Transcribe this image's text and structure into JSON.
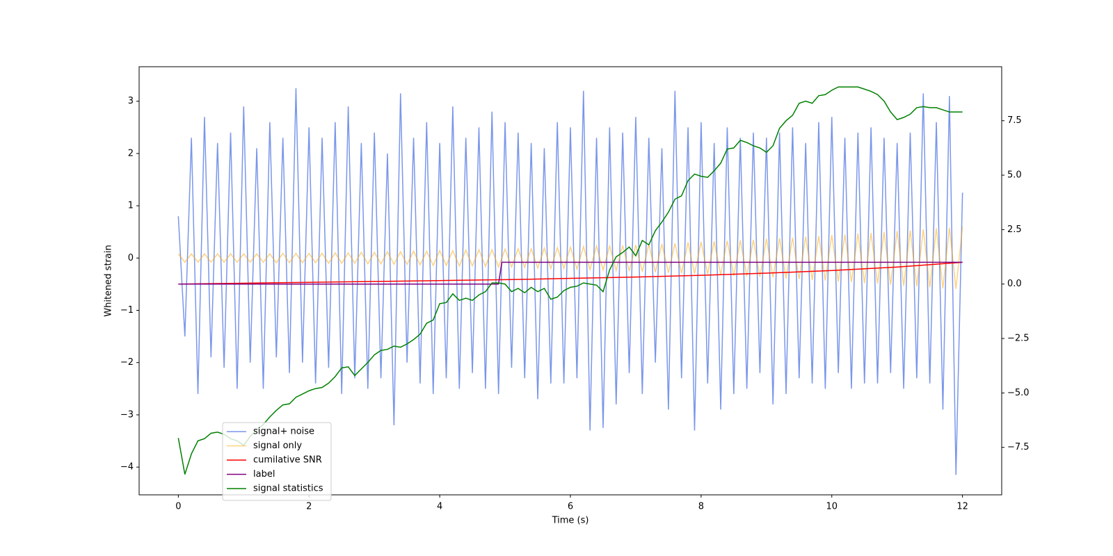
{
  "chart_data": {
    "type": "line",
    "xlabel": "Time (s)",
    "ylabel": "Whitened strain",
    "xlim": [
      -0.6,
      12.6
    ],
    "ylim": [
      -4.53,
      3.66
    ],
    "y2lim": [
      -9.68,
      9.98
    ],
    "xticks": [
      0,
      2,
      4,
      6,
      8,
      10,
      12
    ],
    "yticks": [
      {
        "value": -4,
        "label": "−4"
      },
      {
        "value": -3,
        "label": "−3"
      },
      {
        "value": -2,
        "label": "−2"
      },
      {
        "value": -1,
        "label": "−1"
      },
      0,
      1,
      2,
      3
    ],
    "y2ticks": [
      {
        "value": -7.5,
        "label": "−7.5"
      },
      {
        "value": -5,
        "label": "−5.0"
      },
      {
        "value": -2.5,
        "label": "−2.5"
      },
      {
        "value": 0,
        "label": "0.0"
      },
      2.5,
      {
        "value": 5,
        "label": "5.0"
      },
      7.5
    ],
    "grid": false,
    "legend": "lower left",
    "x": [
      0,
      0.1,
      0.2,
      0.3,
      0.4,
      0.5,
      0.6,
      0.7,
      0.8,
      0.9,
      1,
      1.1,
      1.2,
      1.3,
      1.4,
      1.5,
      1.6,
      1.7,
      1.8,
      1.9,
      2,
      2.1,
      2.2,
      2.3,
      2.4,
      2.5,
      2.6,
      2.7,
      2.8,
      2.9,
      3,
      3.1,
      3.2,
      3.3,
      3.4,
      3.5,
      3.6,
      3.7,
      3.8,
      3.9,
      4,
      4.1,
      4.2,
      4.3,
      4.4,
      4.5,
      4.6,
      4.7,
      4.8,
      4.9,
      5,
      5.1,
      5.2,
      5.3,
      5.4,
      5.5,
      5.6,
      5.7,
      5.8,
      5.9,
      6,
      6.1,
      6.2,
      6.3,
      6.4,
      6.5,
      6.6,
      6.7,
      6.8,
      6.9,
      7,
      7.1,
      7.2,
      7.3,
      7.4,
      7.5,
      7.6,
      7.7,
      7.8,
      7.9,
      8,
      8.1,
      8.2,
      8.3,
      8.4,
      8.5,
      8.6,
      8.7,
      8.8,
      8.9,
      9,
      9.1,
      9.2,
      9.3,
      9.4,
      9.5,
      9.6,
      9.7,
      9.8,
      9.9,
      10,
      10.1,
      10.2,
      10.3,
      10.4,
      10.5,
      10.6,
      10.7,
      10.8,
      10.9,
      11,
      11.1,
      11.2,
      11.3,
      11.4,
      11.5,
      11.6,
      11.7,
      11.8,
      11.9,
      12
    ],
    "series": [
      {
        "name": "signal+ noise",
        "color": "#4169e1",
        "alpha": 0.7,
        "values": [
          0.8,
          -1.5,
          2.3,
          -2.6,
          2.7,
          -1.9,
          2.2,
          -2.1,
          2.4,
          -2.5,
          2.9,
          -2.0,
          2.1,
          -2.5,
          2.6,
          -1.9,
          2.3,
          -2.2,
          3.25,
          -2.0,
          2.5,
          -2.4,
          2.3,
          -2.1,
          2.6,
          -2.6,
          2.9,
          -2.3,
          2.2,
          -2.5,
          2.4,
          -2.3,
          2.0,
          -3.2,
          3.15,
          -2.0,
          2.3,
          -2.4,
          2.6,
          -2.6,
          2.2,
          -2.3,
          2.9,
          -2.5,
          2.3,
          -2.2,
          2.5,
          -2.5,
          2.8,
          -2.6,
          2.6,
          -2.1,
          2.4,
          -2.3,
          2.2,
          -2.7,
          2.1,
          -2.4,
          2.6,
          -2.4,
          2.5,
          -2.3,
          3.2,
          -3.3,
          2.3,
          -3.25,
          2.5,
          -2.8,
          2.4,
          -2.2,
          2.7,
          -2.6,
          2.3,
          -2.0,
          2.1,
          -2.9,
          3.2,
          -2.3,
          2.5,
          -3.3,
          2.6,
          -2.4,
          2.2,
          -2.9,
          2.5,
          -2.6,
          2.3,
          -2.5,
          2.4,
          -2.2,
          2.3,
          -2.8,
          2.4,
          -2.6,
          2.5,
          -2.3,
          2.2,
          -2.4,
          2.6,
          -2.5,
          2.7,
          -2.2,
          2.3,
          -2.5,
          2.4,
          -2.4,
          2.5,
          -2.4,
          2.3,
          -2.2,
          2.2,
          -2.5,
          2.4,
          -2.3,
          3.15,
          -2.4,
          2.6,
          -2.9,
          3.1,
          -4.15,
          1.25
        ]
      },
      {
        "name": "signal only",
        "color": "#ffa500",
        "alpha": 0.5,
        "values": [
          0.08,
          -0.08,
          0.08,
          -0.08,
          0.08,
          -0.08,
          0.08,
          -0.08,
          0.08,
          -0.08,
          0.08,
          -0.08,
          0.08,
          -0.08,
          0.08,
          -0.09,
          0.09,
          -0.09,
          0.09,
          -0.09,
          0.09,
          -0.09,
          0.09,
          -0.1,
          0.1,
          -0.1,
          0.1,
          -0.1,
          0.11,
          -0.11,
          0.11,
          -0.11,
          0.12,
          -0.12,
          0.12,
          -0.12,
          0.13,
          -0.13,
          0.13,
          -0.14,
          0.14,
          -0.14,
          0.14,
          -0.15,
          0.15,
          -0.15,
          0.16,
          -0.16,
          0.16,
          -0.17,
          0.17,
          -0.17,
          0.18,
          -0.18,
          0.18,
          -0.19,
          0.19,
          -0.2,
          0.2,
          -0.2,
          0.21,
          -0.21,
          0.22,
          -0.22,
          0.23,
          -0.23,
          0.23,
          -0.24,
          0.24,
          -0.25,
          0.25,
          -0.26,
          0.26,
          -0.27,
          0.27,
          -0.28,
          0.28,
          -0.29,
          0.3,
          -0.3,
          0.31,
          -0.31,
          0.32,
          -0.32,
          0.33,
          -0.34,
          0.34,
          -0.35,
          0.35,
          -0.36,
          0.37,
          -0.37,
          0.38,
          -0.39,
          0.39,
          -0.4,
          0.41,
          -0.42,
          0.42,
          -0.43,
          0.44,
          -0.45,
          0.45,
          -0.46,
          0.47,
          -0.48,
          0.48,
          -0.49,
          0.5,
          -0.51,
          0.52,
          -0.53,
          0.53,
          -0.54,
          0.55,
          -0.56,
          0.57,
          -0.58,
          0.58,
          -0.59,
          0.6
        ]
      },
      {
        "name": "cumilative SNR",
        "color": "#ff0000",
        "axis": "y2",
        "x": [
          0,
          1,
          2,
          3,
          4,
          5,
          6,
          7,
          8,
          9,
          10,
          11,
          12
        ],
        "values": [
          0,
          0.04,
          0.08,
          0.12,
          0.16,
          0.2,
          0.26,
          0.32,
          0.4,
          0.5,
          0.62,
          0.78,
          1.0
        ]
      },
      {
        "name": "label",
        "color": "#800080",
        "axis": "y2",
        "x": [
          0,
          4.9,
          4.95,
          12
        ],
        "values": [
          0,
          0,
          1,
          1
        ]
      },
      {
        "name": "signal statistics",
        "color": "#008000",
        "axis": "y2",
        "values": [
          -7.07,
          -8.74,
          -7.8,
          -7.2,
          -7.1,
          -6.85,
          -6.8,
          -6.9,
          -7.1,
          -7.2,
          -7.4,
          -7.0,
          -6.7,
          -6.45,
          -6.1,
          -5.8,
          -5.55,
          -5.5,
          -5.2,
          -5.05,
          -4.9,
          -4.8,
          -4.75,
          -4.55,
          -4.25,
          -3.85,
          -3.8,
          -4.2,
          -3.9,
          -3.6,
          -3.25,
          -3.05,
          -3.0,
          -2.85,
          -2.9,
          -2.75,
          -2.55,
          -2.3,
          -1.8,
          -1.65,
          -0.9,
          -0.85,
          -0.45,
          -0.75,
          -0.65,
          -0.75,
          -0.5,
          -0.35,
          0.05,
          0.05,
          0,
          -0.35,
          -0.2,
          -0.4,
          -0.15,
          -0.35,
          -0.2,
          -0.7,
          -0.6,
          -0.3,
          -0.15,
          -0.1,
          0.05,
          0,
          -0.05,
          -0.35,
          0.65,
          1.25,
          1.45,
          1.7,
          1.3,
          2.0,
          1.8,
          2.45,
          2.85,
          3.3,
          3.9,
          4.05,
          4.75,
          5.05,
          4.95,
          4.9,
          5.2,
          5.55,
          6.2,
          6.25,
          6.6,
          6.5,
          6.35,
          6.25,
          6.05,
          6.35,
          7.15,
          7.5,
          7.75,
          8.3,
          8.4,
          8.3,
          8.65,
          8.7,
          8.9,
          9.05,
          9.05,
          9.05,
          9.05,
          8.95,
          8.85,
          8.7,
          8.4,
          7.9,
          7.55,
          7.65,
          7.8,
          8.1,
          8.15,
          8.1,
          8.1,
          8.0,
          7.9,
          7.9,
          7.9
        ]
      }
    ]
  }
}
